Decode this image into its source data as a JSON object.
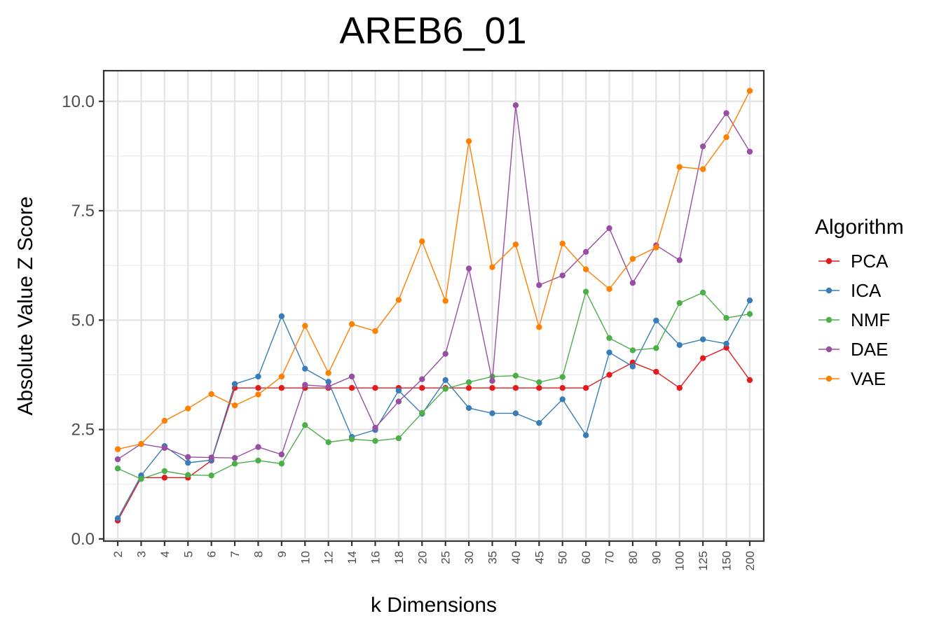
{
  "chart_data": {
    "type": "line",
    "title": "AREB6_01",
    "xlabel": "k Dimensions",
    "ylabel": "Absolute Value Z Score",
    "categories": [
      "2",
      "3",
      "4",
      "5",
      "6",
      "7",
      "8",
      "9",
      "10",
      "12",
      "14",
      "16",
      "18",
      "20",
      "25",
      "30",
      "35",
      "40",
      "45",
      "50",
      "60",
      "70",
      "80",
      "90",
      "100",
      "125",
      "150",
      "200"
    ],
    "ylim": [
      -0.05,
      10.7
    ],
    "yticks": [
      0,
      2.5,
      5,
      7.5,
      10
    ],
    "ytick_labels": [
      "0.0",
      "2.5",
      "5.0",
      "7.5",
      "10.0"
    ],
    "grid": true,
    "legend": {
      "title": "Algorithm",
      "position": "right"
    },
    "series": [
      {
        "name": "PCA",
        "color": "#e41a1c",
        "values": [
          0.42,
          1.4,
          1.4,
          1.4,
          1.79,
          3.45,
          3.45,
          3.45,
          3.45,
          3.45,
          3.45,
          3.45,
          3.45,
          3.45,
          3.45,
          3.45,
          3.45,
          3.45,
          3.45,
          3.45,
          3.45,
          3.75,
          4.03,
          3.82,
          3.45,
          4.13,
          4.37,
          3.63
        ]
      },
      {
        "name": "ICA",
        "color": "#377eb8",
        "values": [
          0.47,
          1.45,
          2.12,
          1.74,
          1.8,
          3.54,
          3.71,
          5.09,
          3.89,
          3.59,
          2.33,
          2.49,
          3.39,
          2.86,
          3.63,
          2.99,
          2.87,
          2.87,
          2.65,
          3.19,
          2.37,
          4.26,
          3.94,
          4.99,
          4.43,
          4.56,
          4.46,
          5.45
        ]
      },
      {
        "name": "NMF",
        "color": "#4daf4a",
        "values": [
          1.61,
          1.37,
          1.55,
          1.46,
          1.45,
          1.72,
          1.79,
          1.72,
          2.6,
          2.21,
          2.28,
          2.24,
          2.3,
          2.88,
          3.43,
          3.58,
          3.71,
          3.73,
          3.58,
          3.7,
          5.65,
          4.59,
          4.31,
          4.36,
          5.39,
          5.63,
          5.05,
          5.14
        ]
      },
      {
        "name": "DAE",
        "color": "#984ea3",
        "values": [
          1.82,
          2.17,
          2.08,
          1.87,
          1.86,
          1.85,
          2.1,
          1.93,
          3.52,
          3.48,
          3.71,
          2.54,
          3.14,
          3.65,
          4.23,
          6.18,
          3.61,
          9.91,
          5.8,
          6.02,
          6.56,
          7.1,
          5.85,
          6.71,
          6.37,
          8.97,
          9.73,
          8.85
        ]
      },
      {
        "name": "VAE",
        "color": "#ff7f00",
        "values": [
          2.05,
          2.17,
          2.7,
          2.98,
          3.31,
          3.05,
          3.3,
          3.71,
          4.87,
          3.79,
          4.91,
          4.75,
          5.46,
          6.8,
          5.44,
          9.09,
          6.21,
          6.73,
          4.84,
          6.75,
          6.16,
          5.71,
          6.4,
          6.66,
          8.5,
          8.45,
          9.18,
          10.24
        ]
      }
    ]
  }
}
